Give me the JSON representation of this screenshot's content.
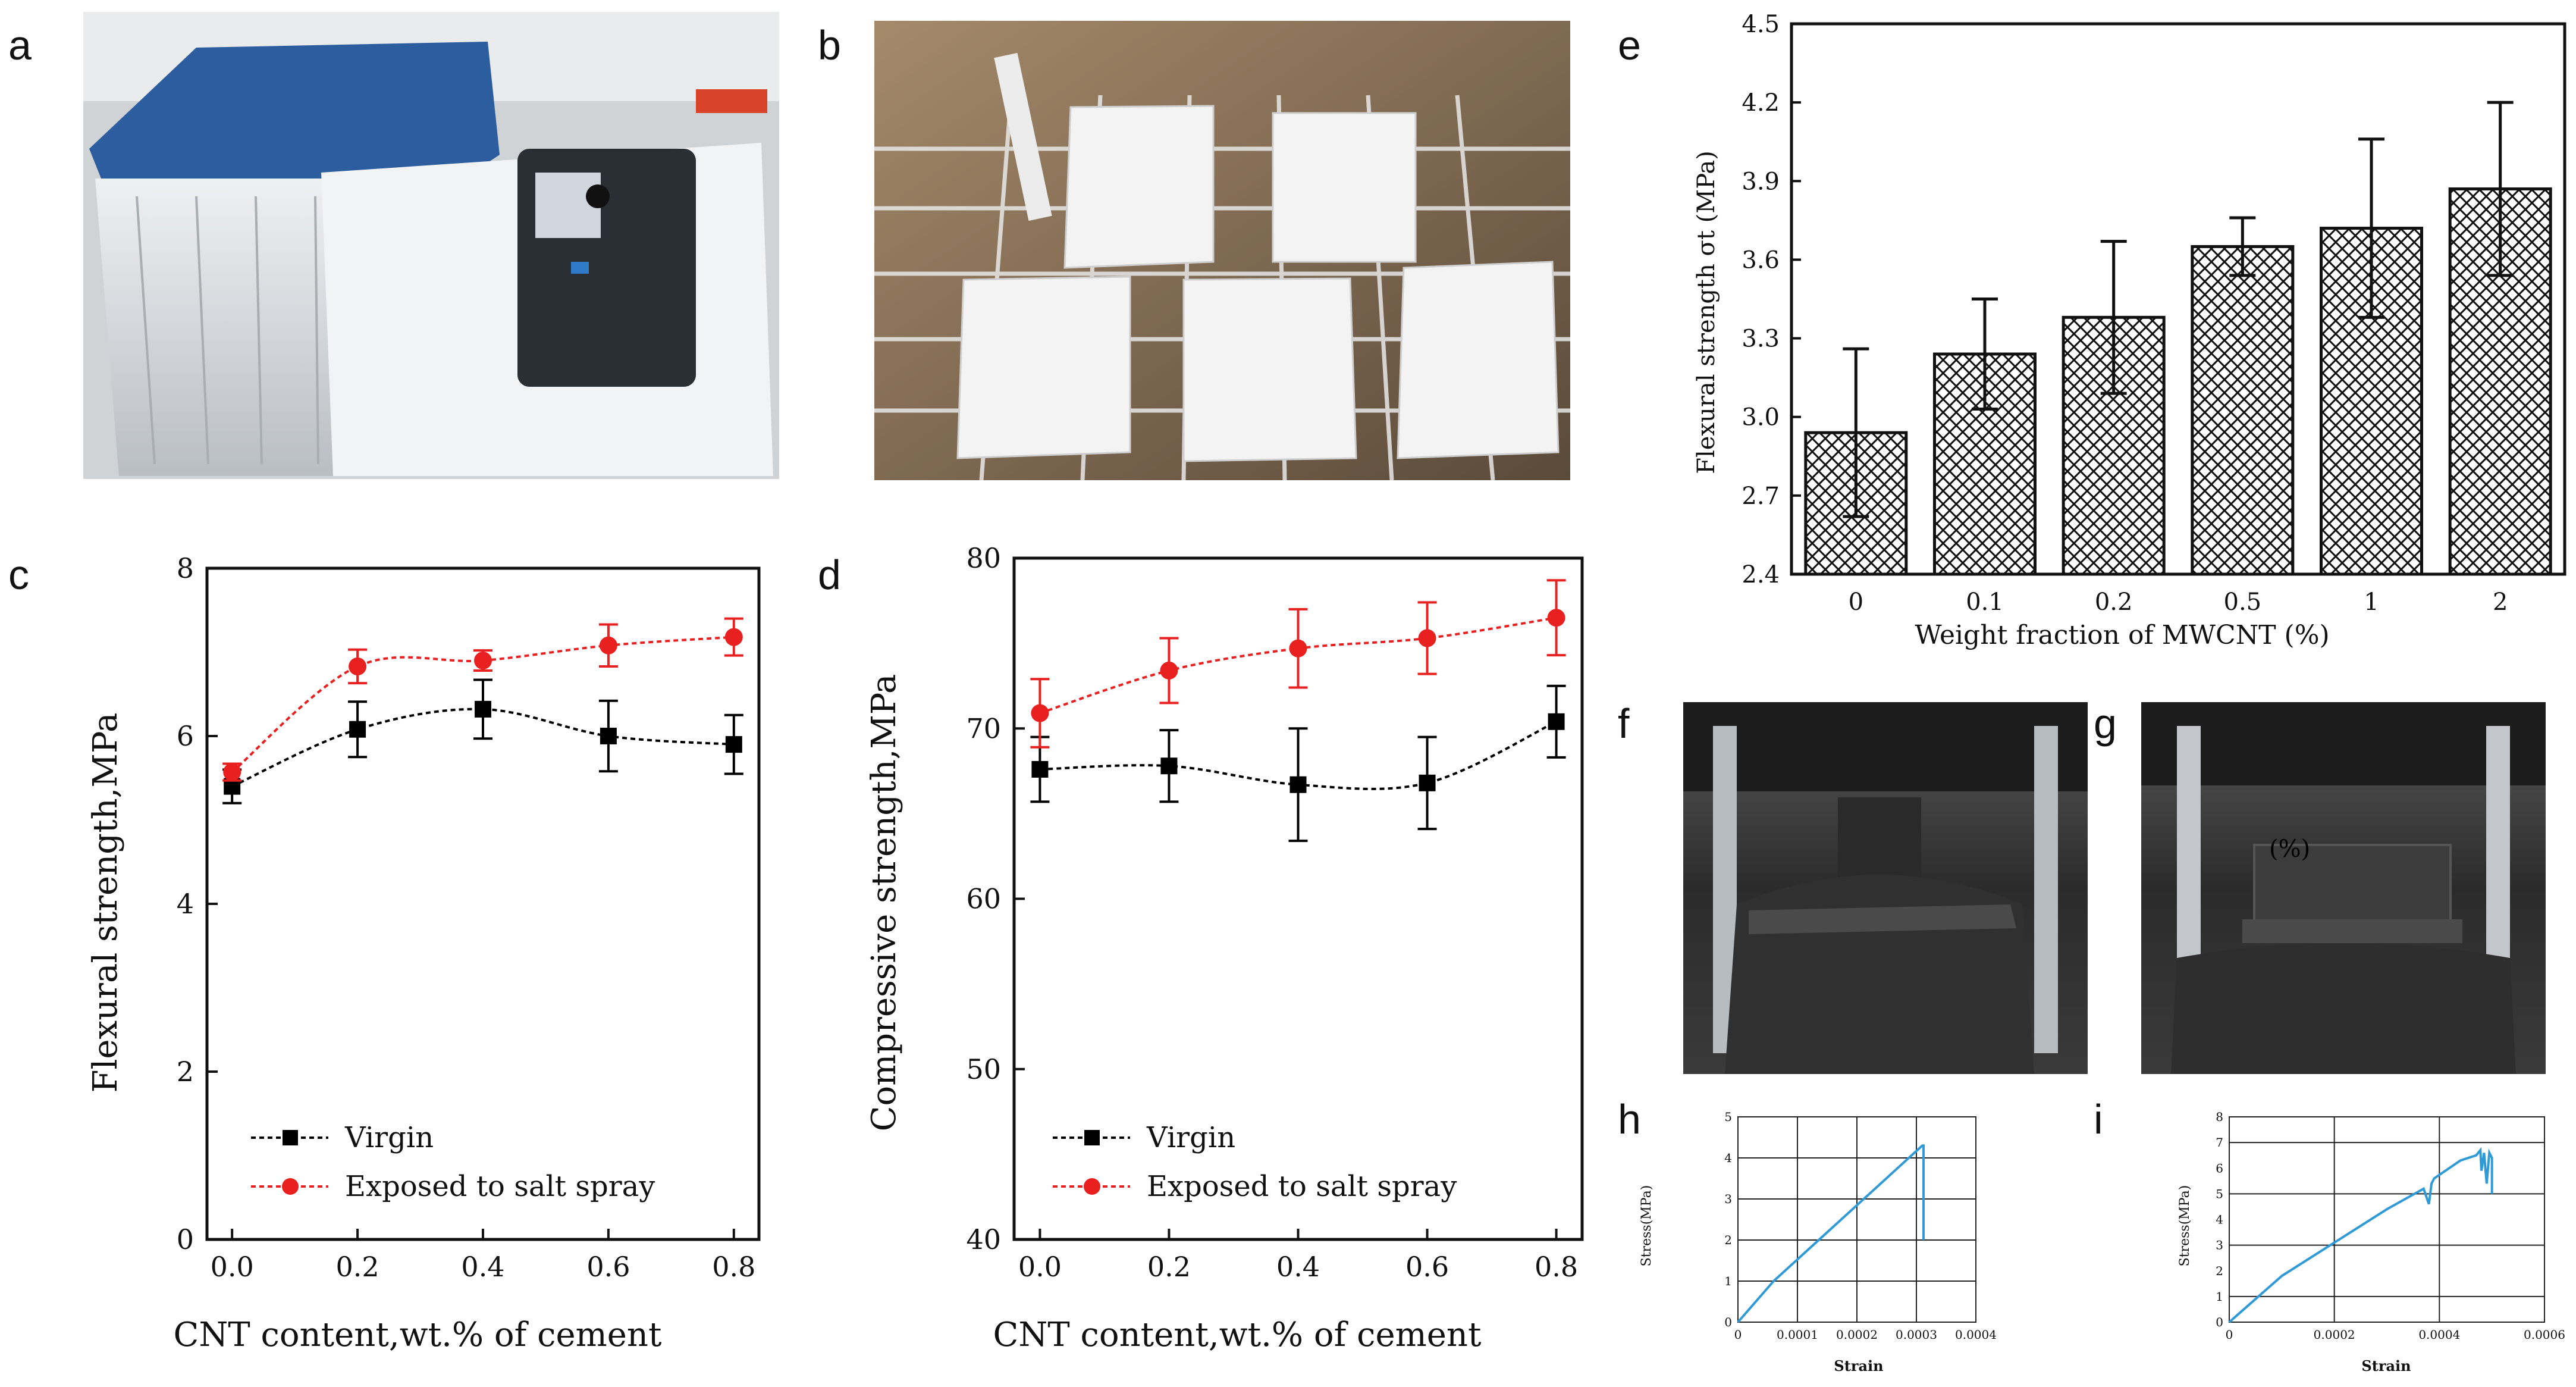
{
  "panel_labels": {
    "a": "a",
    "b": "b",
    "c": "c",
    "d": "d",
    "e": "e",
    "f": "f",
    "g": "g",
    "h": "h",
    "i": "i"
  },
  "photo_text": {
    "g_overlay": "(%)"
  },
  "colors": {
    "virgin": "#000000",
    "salt": "#e8201f",
    "curve": "#2f9ad6",
    "photo_a_body": "#dfe3e7",
    "photo_a_lid": "#2c5d9e",
    "photo_b_bg": "#8f7b63",
    "press_dark": "#1e1e1e"
  },
  "chart_data": [
    {
      "id": "c",
      "type": "line",
      "title": "",
      "xlabel": "CNT content,wt.% of cement",
      "ylabel": "Flexural strength,MPa",
      "x": [
        0.0,
        0.2,
        0.4,
        0.6,
        0.8
      ],
      "xticks": [
        "0.0",
        "0.2",
        "0.4",
        "0.6",
        "0.8"
      ],
      "xlim": [
        -0.04,
        0.84
      ],
      "yticks": [
        "0",
        "2",
        "4",
        "6",
        "8"
      ],
      "ylim": [
        0,
        8
      ],
      "series": [
        {
          "name": "Virgin",
          "values": [
            5.4,
            6.08,
            6.32,
            6.0,
            5.9
          ],
          "err": [
            0.2,
            0.33,
            0.35,
            0.42,
            0.35
          ],
          "marker": "square",
          "color": "#000000"
        },
        {
          "name": "Exposed to salt spray",
          "values": [
            5.57,
            6.83,
            6.9,
            7.08,
            7.18
          ],
          "err": [
            0.1,
            0.2,
            0.12,
            0.25,
            0.22
          ],
          "marker": "circle",
          "color": "#e8201f"
        }
      ],
      "legend": "bottom-left"
    },
    {
      "id": "d",
      "type": "line",
      "title": "",
      "xlabel": "CNT content,wt.% of cement",
      "ylabel": "Compressive strength,MPa",
      "x": [
        0.0,
        0.2,
        0.4,
        0.6,
        0.8
      ],
      "xticks": [
        "0.0",
        "0.2",
        "0.4",
        "0.6",
        "0.8"
      ],
      "xlim": [
        -0.04,
        0.84
      ],
      "yticks": [
        "40",
        "50",
        "60",
        "70",
        "80"
      ],
      "ylim": [
        40,
        80
      ],
      "series": [
        {
          "name": "Virgin",
          "values": [
            67.6,
            67.8,
            66.7,
            66.8,
            70.4
          ],
          "err": [
            1.9,
            2.1,
            3.3,
            2.7,
            2.1
          ],
          "marker": "square",
          "color": "#000000"
        },
        {
          "name": "Exposed to salt spray",
          "values": [
            70.9,
            73.4,
            74.7,
            75.3,
            76.5
          ],
          "err": [
            2.0,
            1.9,
            2.3,
            2.1,
            2.2
          ],
          "marker": "circle",
          "color": "#e8201f"
        }
      ],
      "legend": "bottom-left"
    },
    {
      "id": "e",
      "type": "bar",
      "title": "",
      "xlabel": "Weight fraction of MWCNT (%)",
      "ylabel": "Flexural strength σt (MPa)",
      "categories": [
        "0",
        "0.1",
        "0.2",
        "0.5",
        "1",
        "2"
      ],
      "values": [
        2.94,
        3.24,
        3.38,
        3.65,
        3.72,
        3.87
      ],
      "err": [
        0.32,
        0.21,
        0.29,
        0.11,
        0.34,
        0.33
      ],
      "yticks": [
        "2.4",
        "2.7",
        "3.0",
        "3.3",
        "3.6",
        "3.9",
        "4.2",
        "4.5"
      ],
      "ylim": [
        2.4,
        4.5
      ]
    },
    {
      "id": "h",
      "type": "line",
      "xlabel": "Strain",
      "ylabel": "Stress(MPa)",
      "xticks": [
        "0",
        "0.0001",
        "0.0002",
        "0.0003",
        "0.0004"
      ],
      "xlim": [
        0,
        0.0004
      ],
      "yticks": [
        "0",
        "1",
        "2",
        "3",
        "4",
        "5"
      ],
      "ylim": [
        0,
        5
      ],
      "x": [
        0,
        6e-05,
        0.00031,
        0.000312,
        0.000312
      ],
      "values": [
        0,
        1.0,
        4.3,
        4.3,
        2.0
      ]
    },
    {
      "id": "i",
      "type": "line",
      "xlabel": "Strain",
      "ylabel": "Stress(MPa)",
      "xticks": [
        "0",
        "0.0002",
        "0.0004",
        "0.0006"
      ],
      "xlim": [
        0,
        0.0006
      ],
      "yticks": [
        "0",
        "1",
        "2",
        "3",
        "4",
        "5",
        "6",
        "7",
        "8"
      ],
      "ylim": [
        0,
        8
      ],
      "x": [
        0,
        5e-05,
        0.0001,
        0.0002,
        0.0003,
        0.00037,
        0.00038,
        0.000385,
        0.00039,
        0.00044,
        0.00047,
        0.000478,
        0.00048,
        0.000485,
        0.00049,
        0.000495,
        0.0005,
        0.0005
      ],
      "values": [
        0,
        0.9,
        1.8,
        3.1,
        4.4,
        5.2,
        4.6,
        5.4,
        5.6,
        6.3,
        6.5,
        6.7,
        5.9,
        6.6,
        5.4,
        6.6,
        6.4,
        5.0
      ]
    }
  ]
}
